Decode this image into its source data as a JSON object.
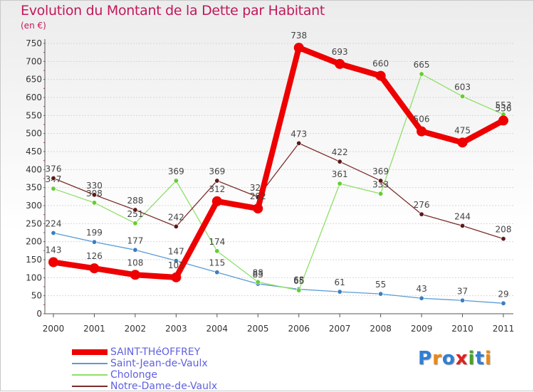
{
  "chart_data": {
    "type": "line",
    "title": "Evolution du Montant de la Dette par Habitant",
    "unit_label": "(en €)",
    "xlabel": "",
    "ylabel": "",
    "ylim": [
      0,
      750
    ],
    "yticks": [
      0,
      50,
      100,
      150,
      200,
      250,
      300,
      350,
      400,
      450,
      500,
      550,
      600,
      650,
      700,
      750
    ],
    "categories": [
      "2000",
      "2001",
      "2002",
      "2003",
      "2004",
      "2005",
      "2006",
      "2007",
      "2008",
      "2009",
      "2010",
      "2011"
    ],
    "grid": "horizontal",
    "legend_position": "bottom-left",
    "series": [
      {
        "name": "Saint-Jean-de-Vaulx",
        "color": "#5b9bd5",
        "marker": "#3a7ec0",
        "width": "thin",
        "values": [
          224,
          199,
          177,
          147,
          115,
          83,
          68,
          61,
          55,
          43,
          37,
          29
        ]
      },
      {
        "name": "Cholonge",
        "color": "#8ee06a",
        "marker": "#66cc33",
        "width": "thin",
        "values": [
          347,
          308,
          251,
          369,
          174,
          88,
          65,
          361,
          333,
          665,
          603,
          553
        ]
      },
      {
        "name": "Notre-Dame-de-Vaulx",
        "color": "#7b2c2c",
        "marker": "#5a1a1a",
        "width": "thin",
        "values": [
          376,
          330,
          288,
          242,
          369,
          324,
          473,
          422,
          369,
          276,
          244,
          208
        ]
      },
      {
        "name": "SAINT-THéOFFREY",
        "color": "#ee0000",
        "marker": "#ee0000",
        "width": "thick",
        "values": [
          143,
          126,
          108,
          101,
          312,
          292,
          738,
          693,
          660,
          506,
          475,
          536
        ]
      }
    ],
    "legend_order": [
      "SAINT-THéOFFREY",
      "Saint-Jean-de-Vaulx",
      "Cholonge",
      "Notre-Dame-de-Vaulx"
    ]
  },
  "logo": {
    "text": "Proxiti",
    "letters": [
      "P",
      "r",
      "o",
      "x",
      "i",
      "t",
      "i"
    ],
    "colors": [
      "#2f7fd6",
      "#e88a1a",
      "#2f7fd6",
      "#e02020",
      "#4aa02a",
      "#2f7fd6",
      "#e88a1a"
    ]
  }
}
